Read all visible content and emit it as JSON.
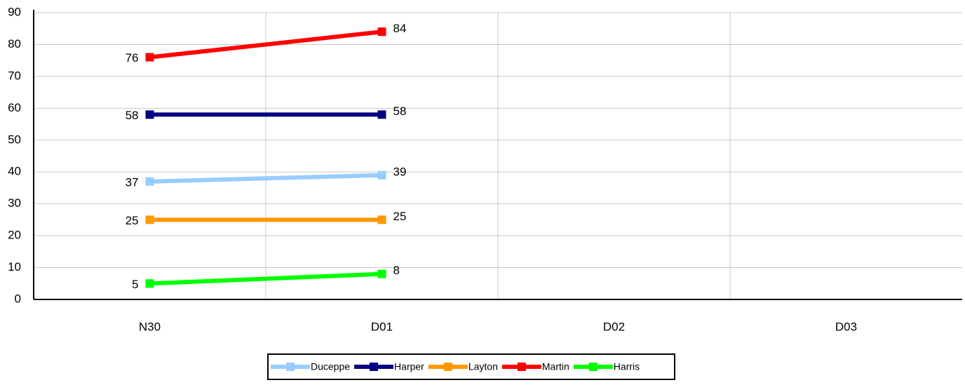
{
  "chart_data": {
    "type": "line",
    "categories": [
      "N30",
      "D01",
      "D02",
      "D03"
    ],
    "series": [
      {
        "name": "Duceppe",
        "color": "#99ccff",
        "values": [
          37,
          39,
          null,
          null
        ]
      },
      {
        "name": "Harper",
        "color": "#000080",
        "values": [
          58,
          58,
          null,
          null
        ]
      },
      {
        "name": "Layton",
        "color": "#ff9900",
        "values": [
          25,
          25,
          null,
          null
        ]
      },
      {
        "name": "Martin",
        "color": "#ff0000",
        "values": [
          76,
          84,
          null,
          null
        ]
      },
      {
        "name": "Harris",
        "color": "#00ff00",
        "values": [
          5,
          8,
          null,
          null
        ]
      }
    ],
    "ylim": [
      0,
      90
    ],
    "yticks": [
      0,
      10,
      20,
      30,
      40,
      50,
      60,
      70,
      80,
      90
    ],
    "grid": true,
    "legend": "bottom"
  }
}
